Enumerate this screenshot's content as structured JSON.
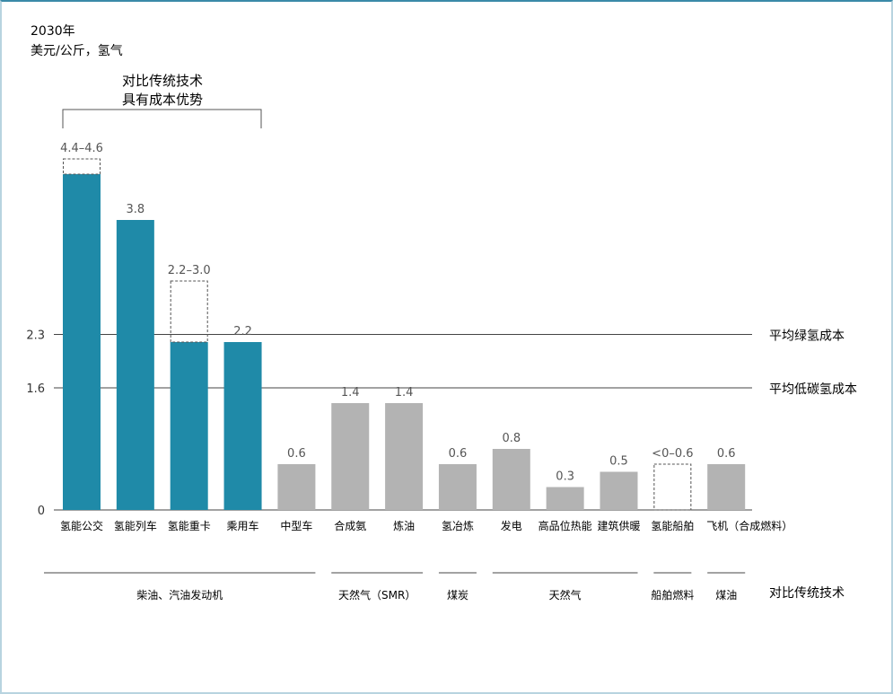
{
  "chart_data": {
    "type": "bar",
    "title_lines": [
      "2030年",
      "美元/公斤，氢气"
    ],
    "bracket_label": [
      "对比传统技术",
      "具有成本优势"
    ],
    "categories": [
      "氢能公交",
      "氢能列车",
      "氢能重卡",
      "乘用车",
      "中型车",
      "合成氨",
      "炼油",
      "氢冶炼",
      "发电",
      "高品位热能",
      "建筑供暖",
      "氢能船舶",
      "飞机（合成燃料）"
    ],
    "values": [
      4.4,
      3.8,
      2.2,
      2.2,
      0.6,
      1.4,
      1.4,
      0.6,
      0.8,
      0.3,
      0.5,
      0,
      0.6
    ],
    "range_high": [
      4.6,
      null,
      3.0,
      null,
      null,
      null,
      null,
      null,
      null,
      null,
      null,
      0.6,
      null
    ],
    "data_labels": [
      "4.4–4.6",
      "3.8",
      "2.2–3.0",
      "2.2",
      "0.6",
      "1.4",
      "1.4",
      "0.6",
      "0.8",
      "0.3",
      "0.5",
      "<0–0.6",
      "0.6"
    ],
    "highlight_count": 4,
    "colors": {
      "highlight": "#1f8aa8",
      "other": "#b3b3b3",
      "range": "#555555"
    },
    "yticks": [
      {
        "value": 0,
        "label": "0"
      },
      {
        "value": 1.6,
        "label": "1.6"
      },
      {
        "value": 2.3,
        "label": "2.3"
      }
    ],
    "reference_lines": [
      {
        "value": 2.3,
        "label": "平均绿氢成本"
      },
      {
        "value": 1.6,
        "label": "平均低碳氢成本"
      }
    ],
    "ylim": [
      0,
      4.7
    ],
    "comparison_title": "对比传统技术",
    "comparison_groups": [
      {
        "label": "柴油、汽油发动机",
        "from": 0,
        "to": 4
      },
      {
        "label": "天然气（SMR）",
        "from": 5,
        "to": 6
      },
      {
        "label": "煤炭",
        "from": 7,
        "to": 7
      },
      {
        "label": "天然气",
        "from": 8,
        "to": 10
      },
      {
        "label": "船舶燃料",
        "from": 11,
        "to": 11
      },
      {
        "label": "煤油",
        "from": 12,
        "to": 12
      }
    ]
  }
}
